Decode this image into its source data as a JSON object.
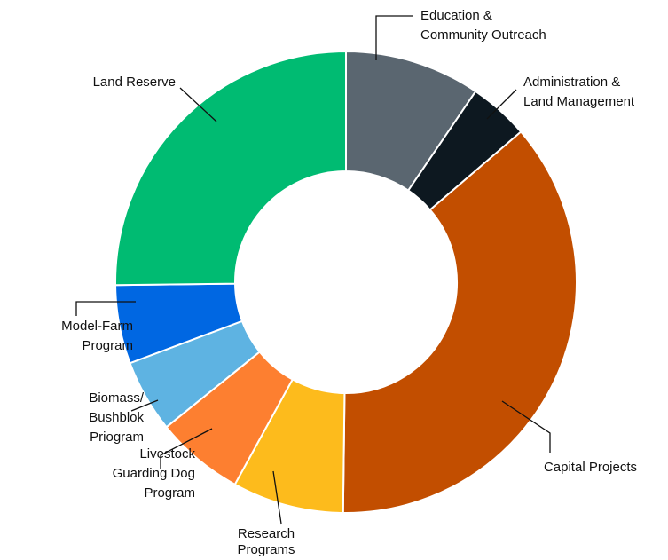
{
  "chart_data": {
    "type": "pie",
    "title": "",
    "donut": true,
    "legend": "none",
    "slices": [
      {
        "label": "Education &\nCommunity Outreach",
        "value": 9.5,
        "color": "#5a6670"
      },
      {
        "label": "Administration &\nLand Management",
        "value": 4.2,
        "color": "#0d1820"
      },
      {
        "label": "Capital Projects",
        "value": 36.5,
        "color": "#c24e00"
      },
      {
        "label": "Research\nPrograms",
        "value": 7.8,
        "color": "#fdbb1c"
      },
      {
        "label": "Livestock\nGuarding Dog\nProgram",
        "value": 6.2,
        "color": "#fd7f30"
      },
      {
        "label": "Biomass/\nBushblok\nPriogram",
        "value": 5.1,
        "color": "#5eb3e2"
      },
      {
        "label": "Model-Farm\nProgram",
        "value": 5.5,
        "color": "#0067e2"
      },
      {
        "label": "Land Reserve",
        "value": 25.2,
        "color": "#00bb72"
      }
    ]
  }
}
